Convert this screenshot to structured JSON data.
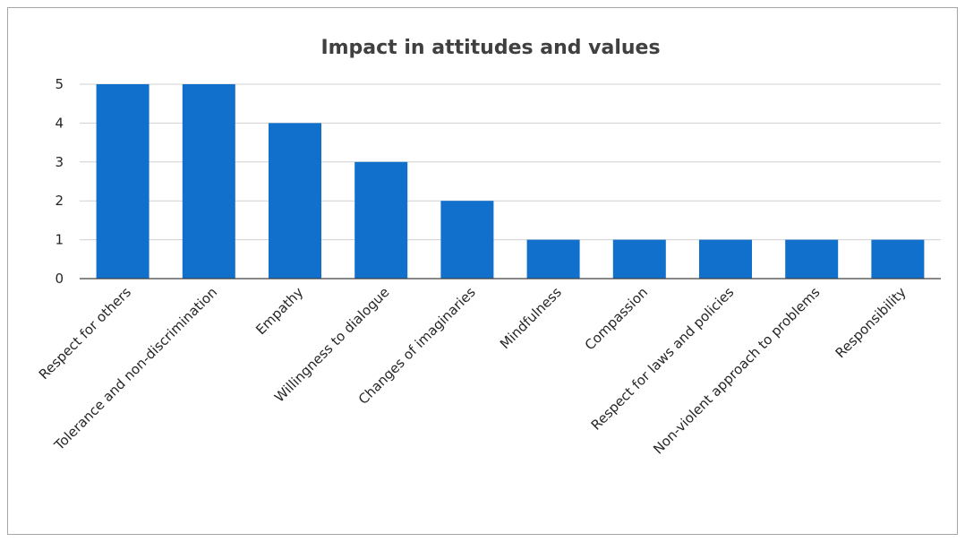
{
  "chart_data": {
    "type": "bar",
    "title": "Impact in attitudes and values",
    "xlabel": "",
    "ylabel": "",
    "categories": [
      "Respect for others",
      "Tolerance and non-discrimination",
      "Empathy",
      "Willingness to dialogue",
      "Changes of imaginaries",
      "Mindfulness",
      "Compassion",
      "Respect for laws and policies",
      "Non-violent approach to problems",
      "Responsibility"
    ],
    "values": [
      5,
      5,
      4,
      3,
      2,
      1,
      1,
      1,
      1,
      1
    ],
    "ylim": [
      0,
      5
    ],
    "yticks": [
      "0",
      "1",
      "2",
      "3",
      "4",
      "5"
    ],
    "grid": true,
    "legend": "none",
    "bar_color": "#1170CC"
  }
}
